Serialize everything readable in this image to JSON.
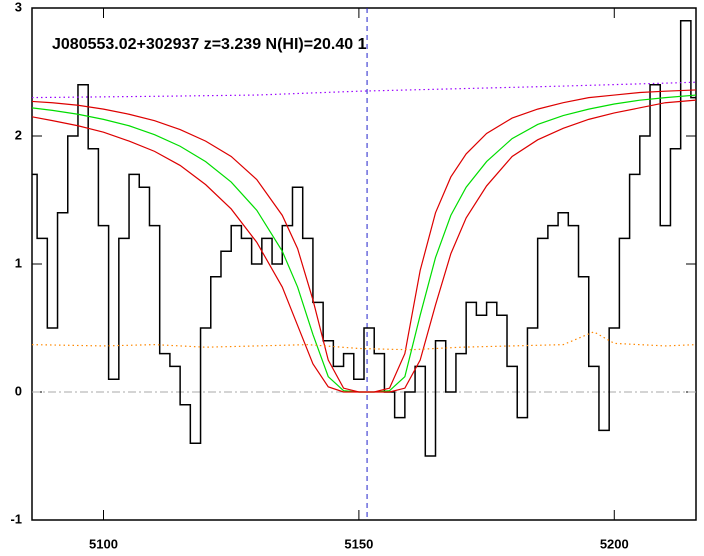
{
  "chart_data": {
    "type": "line",
    "title": "J080553.02+302937 z=3.239 N(HI)=20.40 1",
    "xlim": [
      5086,
      5216
    ],
    "ylim": [
      -1,
      3
    ],
    "xticks": [
      5100,
      5150,
      5200
    ],
    "yticks": [
      -1,
      0,
      1,
      2,
      3
    ],
    "grid": false,
    "reference_line": 0,
    "reference_color": "#aaaaaa",
    "absorber_x": 5151.6,
    "absorber_color": "#2222cc",
    "series": [
      {
        "style": "step",
        "color": "#000000",
        "x": [
          5086,
          5088,
          5090,
          5092,
          5094,
          5096,
          5098,
          5100,
          5102,
          5104,
          5106,
          5108,
          5110,
          5112,
          5114,
          5116,
          5118,
          5120,
          5122,
          5124,
          5126,
          5128,
          5130,
          5132,
          5134,
          5136,
          5138,
          5140,
          5142,
          5144,
          5146,
          5148,
          5150,
          5152,
          5154,
          5156,
          5158,
          5160,
          5162,
          5164,
          5166,
          5168,
          5170,
          5172,
          5174,
          5176,
          5178,
          5180,
          5182,
          5184,
          5186,
          5188,
          5190,
          5192,
          5194,
          5196,
          5198,
          5200,
          5202,
          5204,
          5206,
          5208,
          5210,
          5212,
          5214,
          5216
        ],
        "values": [
          1.7,
          1.2,
          0.5,
          1.4,
          2.0,
          2.4,
          1.9,
          1.3,
          0.1,
          1.2,
          1.7,
          1.6,
          1.3,
          0.3,
          0.2,
          -0.1,
          -0.4,
          0.5,
          0.9,
          1.1,
          1.3,
          1.2,
          1.0,
          1.2,
          1.0,
          1.3,
          1.6,
          1.2,
          0.7,
          0.4,
          0.2,
          0.3,
          0.1,
          0.5,
          0.3,
          0.0,
          -0.2,
          0.0,
          0.2,
          -0.5,
          0.4,
          0.0,
          0.3,
          0.7,
          0.6,
          0.7,
          0.6,
          0.2,
          -0.2,
          0.5,
          1.2,
          1.3,
          1.4,
          1.3,
          0.9,
          0.2,
          -0.3,
          0.5,
          1.2,
          1.7,
          2.0,
          2.4,
          1.3,
          1.9,
          2.9,
          2.3
        ]
      },
      {
        "style": "solid",
        "color": "#00dd00",
        "x": [
          5086,
          5090,
          5095,
          5100,
          5105,
          5110,
          5115,
          5120,
          5125,
          5130,
          5135,
          5138,
          5141,
          5144,
          5147,
          5150,
          5153,
          5156,
          5159,
          5162,
          5165,
          5168,
          5171,
          5175,
          5180,
          5185,
          5190,
          5195,
          5200,
          5205,
          5210,
          5216
        ],
        "values": [
          2.22,
          2.2,
          2.17,
          2.13,
          2.08,
          2.01,
          1.92,
          1.8,
          1.64,
          1.42,
          1.1,
          0.82,
          0.45,
          0.12,
          0.01,
          0,
          0,
          0.01,
          0.12,
          0.6,
          1.05,
          1.38,
          1.6,
          1.8,
          1.98,
          2.09,
          2.16,
          2.21,
          2.25,
          2.28,
          2.3,
          2.32
        ]
      },
      {
        "style": "solid",
        "color": "#dd0000",
        "x": [
          5086,
          5090,
          5095,
          5100,
          5105,
          5110,
          5115,
          5120,
          5125,
          5130,
          5135,
          5138,
          5141,
          5144,
          5147,
          5150,
          5153,
          5156,
          5159,
          5162,
          5165,
          5168,
          5171,
          5175,
          5180,
          5185,
          5190,
          5195,
          5200,
          5205,
          5210,
          5216
        ],
        "values": [
          2.27,
          2.26,
          2.24,
          2.21,
          2.17,
          2.12,
          2.05,
          1.96,
          1.84,
          1.66,
          1.38,
          1.12,
          0.72,
          0.25,
          0.03,
          0,
          0,
          0.03,
          0.3,
          0.95,
          1.4,
          1.68,
          1.86,
          2.02,
          2.14,
          2.21,
          2.26,
          2.3,
          2.32,
          2.34,
          2.35,
          2.36
        ]
      },
      {
        "style": "solid",
        "color": "#dd0000",
        "x": [
          5086,
          5090,
          5095,
          5100,
          5105,
          5110,
          5115,
          5120,
          5125,
          5130,
          5135,
          5138,
          5141,
          5144,
          5147,
          5150,
          5153,
          5156,
          5159,
          5162,
          5165,
          5168,
          5171,
          5175,
          5180,
          5185,
          5190,
          5195,
          5200,
          5205,
          5210,
          5216
        ],
        "values": [
          2.15,
          2.12,
          2.08,
          2.03,
          1.96,
          1.88,
          1.77,
          1.62,
          1.43,
          1.17,
          0.82,
          0.52,
          0.22,
          0.04,
          0,
          0,
          0,
          0,
          0.03,
          0.25,
          0.68,
          1.08,
          1.36,
          1.61,
          1.84,
          1.97,
          2.06,
          2.13,
          2.18,
          2.22,
          2.26,
          2.28
        ]
      },
      {
        "style": "dotted",
        "color": "#9900ff",
        "x": [
          5086,
          5110,
          5130,
          5150,
          5170,
          5190,
          5216
        ],
        "values": [
          2.3,
          2.31,
          2.32,
          2.35,
          2.37,
          2.39,
          2.42
        ]
      },
      {
        "style": "dotted",
        "color": "#ff8800",
        "x": [
          5086,
          5100,
          5110,
          5120,
          5130,
          5140,
          5150,
          5160,
          5170,
          5180,
          5190,
          5196,
          5200,
          5210,
          5216
        ],
        "values": [
          0.37,
          0.36,
          0.37,
          0.35,
          0.36,
          0.37,
          0.34,
          0.33,
          0.35,
          0.36,
          0.37,
          0.47,
          0.38,
          0.36,
          0.37
        ]
      }
    ]
  }
}
